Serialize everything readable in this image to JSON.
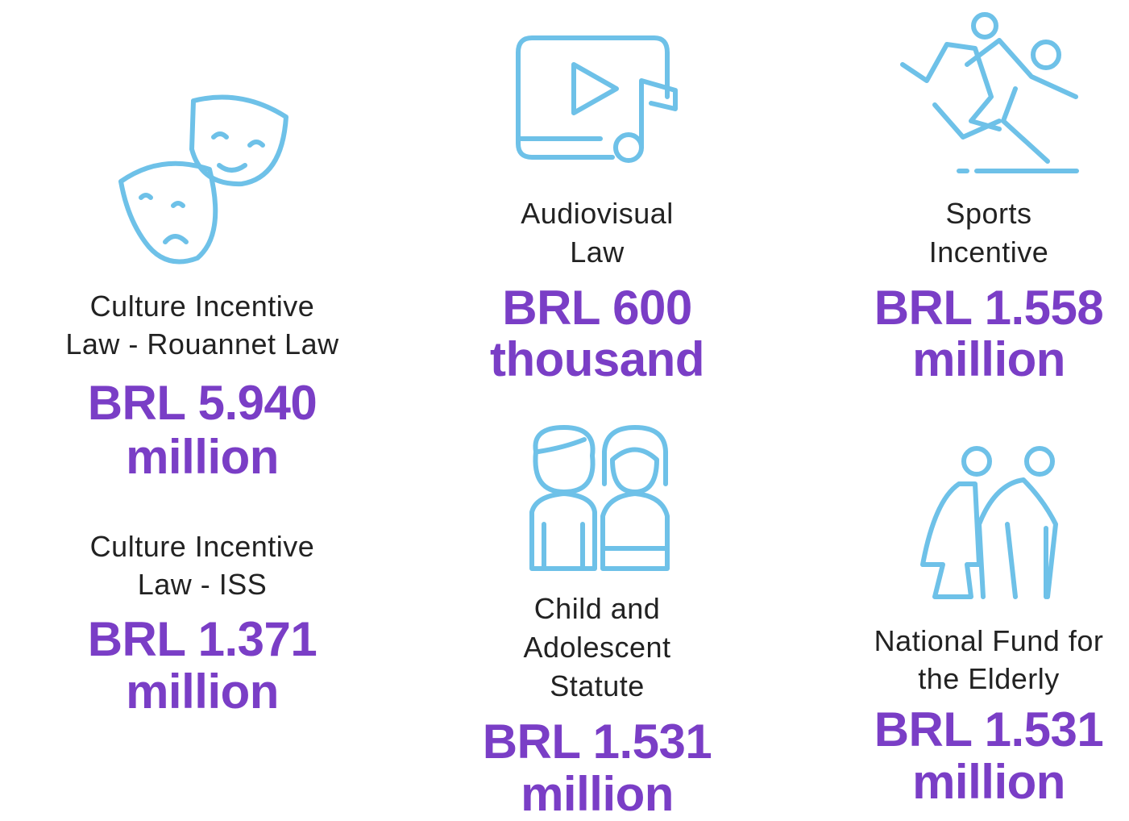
{
  "items": [
    {
      "label": [
        "Culture Incentive",
        "Law - Rouannet Law"
      ],
      "amount": [
        "BRL 5.940",
        "million"
      ]
    },
    {
      "label": [
        "Culture Incentive",
        "Law - ISS"
      ],
      "amount": [
        "BRL 1.371",
        "million"
      ]
    },
    {
      "label": [
        "Audiovisual",
        "Law"
      ],
      "amount": [
        "BRL 600",
        "thousand"
      ]
    },
    {
      "label": [
        "Child and",
        "Adolescent",
        "Statute"
      ],
      "amount": [
        "BRL 1.531",
        "million"
      ]
    },
    {
      "label": [
        "Sports",
        "Incentive"
      ],
      "amount": [
        "BRL 1.558",
        "million"
      ]
    },
    {
      "label": [
        "National Fund for",
        "the Elderly"
      ],
      "amount": [
        "BRL 1.531",
        "million"
      ]
    }
  ]
}
